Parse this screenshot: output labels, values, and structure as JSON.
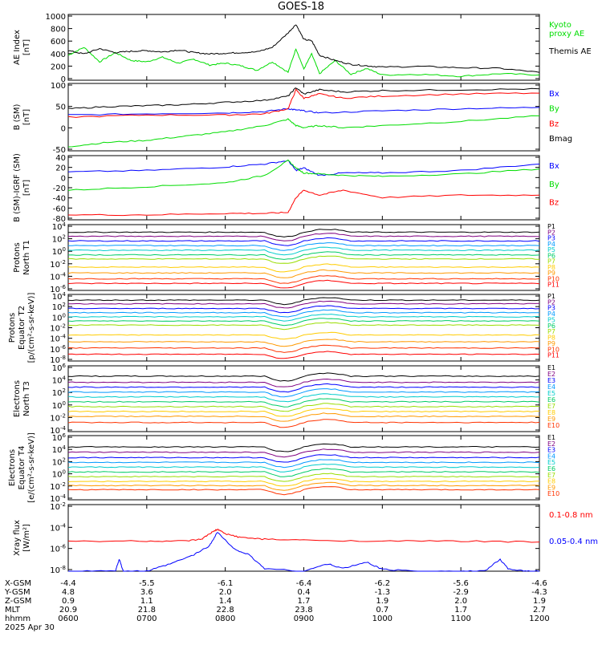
{
  "title": "GOES-18",
  "x_axis": {
    "ticks": [
      "0600",
      "0700",
      "0800",
      "0900",
      "1000",
      "1100",
      "1200"
    ],
    "row_labels": [
      "X-GSM",
      "Y-GSM",
      "Z-GSM",
      "MLT",
      "hhmm"
    ],
    "rows": [
      [
        "-4.4",
        "-5.5",
        "-6.1",
        "-6.4",
        "-6.2",
        "-5.6",
        "-4.6"
      ],
      [
        "4.8",
        "3.6",
        "2.0",
        "0.4",
        "-1.3",
        "-2.9",
        "-4.3"
      ],
      [
        "0.9",
        "1.1",
        "1.4",
        "1.7",
        "1.9",
        "2.0",
        "1.9"
      ],
      [
        "20.9",
        "21.8",
        "22.8",
        "23.8",
        "0.7",
        "1.7",
        "2.7"
      ],
      [
        "0600",
        "0700",
        "0800",
        "0900",
        "1000",
        "1100",
        "1200"
      ]
    ],
    "date": "2025 Apr 30"
  },
  "colors": {
    "black": "#000000",
    "green": "#00dd00",
    "blue": "#0000ff",
    "red": "#ff0000",
    "P": [
      "#000000",
      "#800080",
      "#0000ff",
      "#0099ff",
      "#00cccc",
      "#00cc66",
      "#99dd00",
      "#ffcc00",
      "#ff9900",
      "#ff3300",
      "#ff0000"
    ]
  },
  "chart_data": [
    {
      "type": "line",
      "ylabel": "AE Index\n[nT]",
      "yticks": [
        "1000",
        "800",
        "600",
        "400",
        "200",
        "0"
      ],
      "ylim": [
        0,
        1000
      ],
      "series": [
        {
          "name": "Kyoto proxy AE",
          "color": "#00dd00",
          "x": [
            6.0,
            6.2,
            6.4,
            6.6,
            6.8,
            7.0,
            7.2,
            7.4,
            7.6,
            7.8,
            8.0,
            8.2,
            8.4,
            8.6,
            8.8,
            8.9,
            9.0,
            9.1,
            9.2,
            9.4,
            9.6,
            9.8,
            10.0,
            10.5,
            11.0,
            11.5,
            12.0
          ],
          "y": [
            380,
            500,
            280,
            420,
            300,
            280,
            350,
            260,
            320,
            230,
            260,
            220,
            150,
            280,
            120,
            480,
            170,
            400,
            100,
            300,
            90,
            180,
            80,
            90,
            60,
            100,
            80
          ]
        },
        {
          "name": "Themis AE",
          "color": "#000000",
          "x": [
            6.0,
            6.2,
            6.4,
            6.6,
            6.8,
            7.0,
            7.2,
            7.4,
            7.6,
            7.8,
            8.0,
            8.2,
            8.4,
            8.6,
            8.8,
            8.9,
            9.0,
            9.1,
            9.2,
            9.4,
            9.6,
            9.8,
            10.0,
            10.5,
            11.0,
            11.5,
            12.0
          ],
          "y": [
            450,
            400,
            480,
            420,
            440,
            450,
            430,
            460,
            420,
            400,
            410,
            420,
            430,
            500,
            720,
            850,
            620,
            600,
            380,
            300,
            240,
            220,
            200,
            210,
            190,
            180,
            120
          ]
        }
      ],
      "legend": [
        "Kyoto\nproxy AE",
        "Themis AE"
      ]
    },
    {
      "type": "line",
      "ylabel": "B (SM)\n[nT]",
      "yticks": [
        "100",
        "50",
        "0",
        "-50"
      ],
      "ylim": [
        -55,
        105
      ],
      "series": [
        {
          "name": "Bx",
          "color": "#0000ff",
          "x": [
            6.0,
            7.0,
            8.0,
            8.5,
            8.8,
            8.9,
            9.0,
            9.2,
            10.0,
            11.0,
            12.0
          ],
          "y": [
            30,
            33,
            35,
            38,
            45,
            42,
            40,
            35,
            40,
            45,
            48
          ]
        },
        {
          "name": "By",
          "color": "#00dd00",
          "x": [
            6.0,
            6.5,
            7.0,
            7.5,
            8.0,
            8.5,
            8.8,
            8.9,
            9.0,
            9.2,
            9.5,
            10.0,
            11.0,
            12.0
          ],
          "y": [
            -45,
            -35,
            -30,
            -20,
            -10,
            5,
            20,
            5,
            0,
            5,
            0,
            5,
            15,
            28
          ]
        },
        {
          "name": "Bz",
          "color": "#ff0000",
          "x": [
            6.0,
            7.0,
            8.0,
            8.5,
            8.8,
            8.9,
            9.0,
            9.2,
            9.5,
            10.0,
            11.0,
            12.0
          ],
          "y": [
            25,
            30,
            30,
            33,
            45,
            90,
            70,
            80,
            70,
            75,
            80,
            82
          ]
        },
        {
          "name": "Bmag",
          "color": "#000000",
          "x": [
            6.0,
            6.5,
            7.0,
            7.5,
            8.0,
            8.5,
            8.8,
            8.9,
            9.0,
            9.2,
            9.5,
            10.0,
            11.0,
            12.0
          ],
          "y": [
            45,
            50,
            52,
            55,
            60,
            65,
            75,
            95,
            80,
            90,
            85,
            88,
            90,
            92
          ]
        }
      ],
      "legend": [
        "Bx",
        "By",
        "Bz",
        "Bmag"
      ]
    },
    {
      "type": "line",
      "ylabel": "B (SM)-IGRF (SM)\n[nT]",
      "yticks": [
        "40",
        "20",
        "0",
        "-20",
        "-40",
        "-60",
        "-80"
      ],
      "ylim": [
        -85,
        45
      ],
      "series": [
        {
          "name": "Bx",
          "color": "#0000ff",
          "x": [
            6.0,
            7.0,
            8.0,
            8.5,
            8.8,
            8.9,
            9.0,
            9.2,
            9.5,
            10.0,
            11.0,
            12.0
          ],
          "y": [
            12,
            15,
            22,
            28,
            35,
            15,
            20,
            5,
            10,
            10,
            15,
            28
          ]
        },
        {
          "name": "By",
          "color": "#00dd00",
          "x": [
            6.0,
            7.0,
            8.0,
            8.5,
            8.8,
            8.9,
            9.0,
            9.2,
            9.5,
            10.0,
            11.0,
            12.0
          ],
          "y": [
            -25,
            -18,
            -10,
            5,
            35,
            20,
            10,
            8,
            5,
            3,
            8,
            18
          ]
        },
        {
          "name": "Bz",
          "color": "#ff0000",
          "x": [
            6.0,
            7.0,
            8.0,
            8.5,
            8.8,
            8.9,
            9.0,
            9.2,
            9.5,
            10.0,
            11.0,
            12.0
          ],
          "y": [
            -75,
            -75,
            -72,
            -72,
            -70,
            -40,
            -25,
            -35,
            -25,
            -40,
            -35,
            -35
          ]
        }
      ],
      "legend": [
        "Bx",
        "By",
        "Bz"
      ]
    },
    {
      "type": "line",
      "yscale": "log",
      "ylabel": "Protons\nNorth T1",
      "yticks": [
        "10^4",
        "10^2",
        "10^0",
        "10^-2",
        "10^-4",
        "10^-6"
      ],
      "ylim": [
        -7,
        4.3
      ],
      "legend": [
        "P1",
        "P2",
        "P3",
        "P4",
        "P5",
        "P6",
        "P7",
        "P8",
        "P9",
        "P10",
        "P11"
      ],
      "levels_log10": [
        3.0,
        2.3,
        1.5,
        0.7,
        -0.1,
        -0.9,
        -1.6,
        -3.0,
        -4.0,
        -5.0,
        -5.8
      ]
    },
    {
      "type": "line",
      "yscale": "log",
      "ylabel": "Protons\nEquator T2\n[p/(cm²-s-sr-keV)]",
      "yticks": [
        "10^4",
        "10^2",
        "10^0",
        "10^-2",
        "10^-4",
        "10^-6",
        "10^-8"
      ],
      "ylim": [
        -8.5,
        4.3
      ],
      "legend": [
        "P1",
        "P2",
        "P3",
        "P4",
        "P5",
        "P6",
        "P7",
        "P8",
        "P9",
        "P10",
        "P11"
      ],
      "levels_log10": [
        3.2,
        2.5,
        1.6,
        0.8,
        0.0,
        -0.8,
        -1.6,
        -3.5,
        -4.8,
        -6.0,
        -7.2
      ]
    },
    {
      "type": "line",
      "yscale": "log",
      "ylabel": "Electrons\nNorth T3",
      "yticks": [
        "10^6",
        "10^4",
        "10^2",
        "10^0",
        "10^-2",
        "10^-4"
      ],
      "ylim": [
        -4.5,
        6.3
      ],
      "legend": [
        "E1",
        "E2",
        "E3",
        "E4",
        "E5",
        "E6",
        "E7",
        "E8",
        "E9",
        "E10"
      ],
      "levels_log10": [
        4.6,
        3.6,
        2.8,
        2.0,
        1.2,
        0.4,
        -0.4,
        -1.2,
        -2.0,
        -3.0
      ]
    },
    {
      "type": "line",
      "yscale": "log",
      "ylabel": "Electrons\nEquator T4\n[e/(cm²-s-sr-keV)]",
      "yticks": [
        "10^6",
        "10^4",
        "10^2",
        "10^0",
        "10^-2",
        "10^-4"
      ],
      "ylim": [
        -4.5,
        6.3
      ],
      "legend": [
        "E1",
        "E2",
        "E3",
        "E4",
        "E5",
        "E6",
        "E7",
        "E8",
        "E9",
        "E10"
      ],
      "levels_log10": [
        4.4,
        3.5,
        2.6,
        1.8,
        1.0,
        0.2,
        -0.6,
        -1.4,
        -2.1,
        -2.8
      ]
    },
    {
      "type": "line",
      "yscale": "log",
      "ylabel": "Xray flux\n[W/m²]",
      "yticks": [
        "10^-2",
        "10^-4",
        "10^-6",
        "10^-8"
      ],
      "ylim": [
        -9.3,
        -2
      ],
      "series": [
        {
          "name": "0.1-0.8 nm",
          "color": "#ff0000",
          "x": [
            6.0,
            7.0,
            7.5,
            7.7,
            7.8,
            7.9,
            8.0,
            8.2,
            8.5,
            9.0,
            10.0,
            11.0,
            12.0
          ],
          "y": [
            -6.0,
            -6.0,
            -6.0,
            -5.8,
            -5.2,
            -4.7,
            -5.2,
            -5.6,
            -5.8,
            -5.9,
            -6.0,
            -6.0,
            -6.1
          ]
        },
        {
          "name": "0.05-0.4 nm",
          "color": "#0000ff",
          "x": [
            6.0,
            6.6,
            6.65,
            6.7,
            7.0,
            7.3,
            7.6,
            7.8,
            7.9,
            8.1,
            8.3,
            8.5,
            9.0,
            9.3,
            9.5,
            9.8,
            10.0,
            10.5,
            11.0,
            11.3,
            11.5,
            11.6,
            11.8,
            12.0
          ],
          "y": [
            -9.3,
            -9.3,
            -8.0,
            -9.3,
            -9.3,
            -8.5,
            -7.5,
            -6.5,
            -5.0,
            -6.8,
            -7.5,
            -9.0,
            -9.3,
            -8.5,
            -9.0,
            -8.3,
            -9.1,
            -9.3,
            -9.3,
            -9.3,
            -8.0,
            -9.0,
            -9.3,
            -9.3
          ]
        }
      ],
      "legend": [
        "0.1-0.8 nm",
        "0.05-0.4 nm"
      ]
    }
  ]
}
